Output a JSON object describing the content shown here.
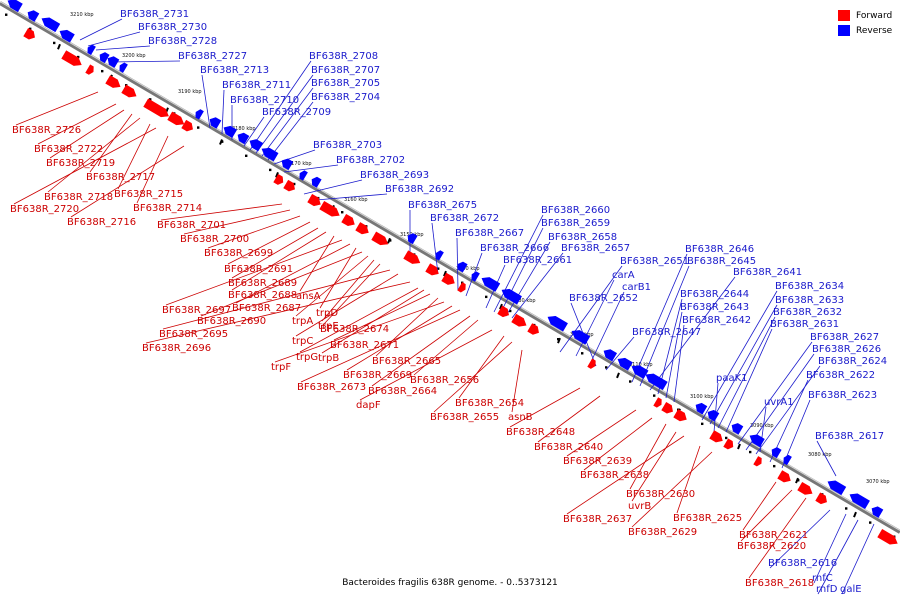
{
  "legend": {
    "forward": "Forward",
    "reverse": "Reverse"
  },
  "caption": "Bacteroides fragilis 638R genome. - 0..5373121",
  "colors": {
    "forward": "#ff0000",
    "reverse": "#0000ff",
    "forward_label": "#cc0000",
    "reverse_label": "#1a1acc",
    "backbone": "#777777",
    "tick": "#000000"
  },
  "axis": {
    "start_kbp": 3212,
    "end_kbp": 3066,
    "tick_labels": [
      "3210 kbp",
      "3200 kbp",
      "3190 kbp",
      "3180 kbp",
      "3170 kbp",
      "3160 kbp",
      "3150 kbp",
      "3140 kbp",
      "3130 kbp",
      "3120 kbp",
      "3110 kbp",
      "3100 kbp",
      "3090 kbp",
      "3080 kbp",
      "3070 kbp"
    ]
  },
  "reverse_labels": [
    "BF638R_2731",
    "BF638R_2730",
    "BF638R_2728",
    "BF638R_2727",
    "BF638R_2713",
    "BF638R_2711",
    "BF638R_2710",
    "BF638R_2709",
    "BF638R_2708",
    "BF638R_2707",
    "BF638R_2705",
    "BF638R_2704",
    "BF638R_2703",
    "BF638R_2702",
    "BF638R_2693",
    "BF638R_2692",
    "BF638R_2675",
    "BF638R_2672",
    "BF638R_2667",
    "BF638R_2666",
    "BF638R_2661",
    "BF638R_2660",
    "BF638R_2659",
    "BF638R_2658",
    "BF638R_2657",
    "BF638R_2651",
    "carA",
    "carB1",
    "BF638R_2652",
    "BF638R_2647",
    "BF638R_2646",
    "BF638R_2645",
    "BF638R_2641",
    "BF638R_2644",
    "BF638R_2643",
    "BF638R_2642",
    "BF638R_2634",
    "BF638R_2633",
    "BF638R_2632",
    "BF638R_2631",
    "BF638R_2627",
    "BF638R_2626",
    "BF638R_2624",
    "paaK1",
    "BF638R_2622",
    "uvrA1",
    "BF638R_2623",
    "BF638R_2617",
    "BF638R_2616",
    "rnfC",
    "rnfD",
    "galE"
  ],
  "forward_labels": [
    "BF638R_2726",
    "BF638R_2722",
    "BF638R_2719",
    "BF638R_2717",
    "BF638R_2718",
    "BF638R_2715",
    "BF638R_2720",
    "BF638R_2714",
    "BF638R_2716",
    "BF638R_2701",
    "BF638R_2700",
    "BF638R_2699",
    "BF638R_2691",
    "BF638R_2689",
    "BF638R_2688",
    "ansA",
    "BF638R_2697",
    "BF638R_2687",
    "trpD",
    "BF638R_2690",
    "trpA",
    "trpE",
    "BF638R_2674",
    "BF638R_2695",
    "trpC",
    "BF638R_2696",
    "trpG",
    "trpB",
    "BF638R_2671",
    "BF638R_2665",
    "trpF",
    "BF638R_2669",
    "BF638R_2673",
    "BF638R_2664",
    "BF638R_2656",
    "dapF",
    "BF638R_2654",
    "BF638R_2655",
    "asnB",
    "BF638R_2648",
    "BF638R_2640",
    "BF638R_2639",
    "BF638R_2638",
    "BF638R_2630",
    "uvrB",
    "BF638R_2637",
    "BF638R_2625",
    "BF638R_2629",
    "BF638R_2621",
    "BF638R_2620",
    "BF638R_2618"
  ]
}
